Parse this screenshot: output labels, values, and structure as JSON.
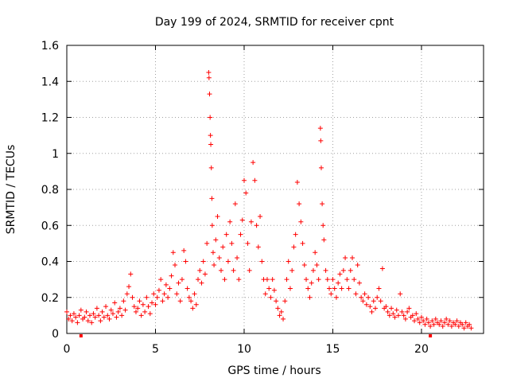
{
  "chart_data": {
    "type": "scatter",
    "title": "Day 199 of 2024, SRMTID for receiver cpnt",
    "xlabel": "GPS time / hours",
    "ylabel": "SRMTID / TECUs",
    "xlim": [
      0,
      23.5
    ],
    "ylim": [
      0,
      1.6
    ],
    "xticks": [
      0,
      5,
      10,
      15,
      20
    ],
    "xtick_labels": [
      "0",
      "5",
      "10",
      "15",
      "20"
    ],
    "yticks": [
      0,
      0.2,
      0.4,
      0.6,
      0.8,
      1.0,
      1.2,
      1.4,
      1.6
    ],
    "ytick_labels": [
      "0",
      "0.2",
      "0.4",
      "0.6",
      "0.8",
      "1",
      "1.2",
      "1.4",
      "1.6"
    ],
    "grid": true,
    "marker": "+",
    "color": "#ff0000",
    "series": [
      {
        "name": "SRMTID",
        "points": [
          [
            0.0,
            0.12
          ],
          [
            0.1,
            0.08
          ],
          [
            0.2,
            0.1
          ],
          [
            0.3,
            0.07
          ],
          [
            0.4,
            0.11
          ],
          [
            0.5,
            0.09
          ],
          [
            0.6,
            0.06
          ],
          [
            0.7,
            0.1
          ],
          [
            0.8,
            0.13
          ],
          [
            0.9,
            0.08
          ],
          [
            1.0,
            0.09
          ],
          [
            1.1,
            0.12
          ],
          [
            1.2,
            0.07
          ],
          [
            1.3,
            0.1
          ],
          [
            1.4,
            0.06
          ],
          [
            1.5,
            0.11
          ],
          [
            1.6,
            0.09
          ],
          [
            1.7,
            0.14
          ],
          [
            1.8,
            0.1
          ],
          [
            1.9,
            0.07
          ],
          [
            2.0,
            0.12
          ],
          [
            2.1,
            0.09
          ],
          [
            2.2,
            0.15
          ],
          [
            2.3,
            0.1
          ],
          [
            2.4,
            0.08
          ],
          [
            2.5,
            0.13
          ],
          [
            2.6,
            0.11
          ],
          [
            2.7,
            0.17
          ],
          [
            2.8,
            0.09
          ],
          [
            2.9,
            0.12
          ],
          [
            3.0,
            0.14
          ],
          [
            3.1,
            0.1
          ],
          [
            3.2,
            0.18
          ],
          [
            3.3,
            0.13
          ],
          [
            3.4,
            0.22
          ],
          [
            3.5,
            0.26
          ],
          [
            3.6,
            0.33
          ],
          [
            3.7,
            0.2
          ],
          [
            3.8,
            0.15
          ],
          [
            3.9,
            0.12
          ],
          [
            4.0,
            0.14
          ],
          [
            4.1,
            0.18
          ],
          [
            4.2,
            0.1
          ],
          [
            4.3,
            0.16
          ],
          [
            4.4,
            0.12
          ],
          [
            4.5,
            0.2
          ],
          [
            4.6,
            0.15
          ],
          [
            4.7,
            0.11
          ],
          [
            4.8,
            0.17
          ],
          [
            4.9,
            0.22
          ],
          [
            5.0,
            0.16
          ],
          [
            5.1,
            0.2
          ],
          [
            5.2,
            0.24
          ],
          [
            5.3,
            0.3
          ],
          [
            5.4,
            0.18
          ],
          [
            5.5,
            0.22
          ],
          [
            5.6,
            0.27
          ],
          [
            5.7,
            0.2
          ],
          [
            5.8,
            0.25
          ],
          [
            5.9,
            0.32
          ],
          [
            6.0,
            0.45
          ],
          [
            6.1,
            0.38
          ],
          [
            6.2,
            0.22
          ],
          [
            6.3,
            0.28
          ],
          [
            6.4,
            0.18
          ],
          [
            6.5,
            0.3
          ],
          [
            6.6,
            0.46
          ],
          [
            6.7,
            0.4
          ],
          [
            6.8,
            0.25
          ],
          [
            6.9,
            0.2
          ],
          [
            7.0,
            0.18
          ],
          [
            7.1,
            0.14
          ],
          [
            7.2,
            0.22
          ],
          [
            7.3,
            0.16
          ],
          [
            7.4,
            0.3
          ],
          [
            7.5,
            0.35
          ],
          [
            7.6,
            0.28
          ],
          [
            7.7,
            0.4
          ],
          [
            7.8,
            0.33
          ],
          [
            7.9,
            0.5
          ],
          [
            8.0,
            1.45
          ],
          [
            8.02,
            1.42
          ],
          [
            8.05,
            1.33
          ],
          [
            8.08,
            1.2
          ],
          [
            8.1,
            1.1
          ],
          [
            8.12,
            1.05
          ],
          [
            8.15,
            0.92
          ],
          [
            8.18,
            0.75
          ],
          [
            8.2,
            0.6
          ],
          [
            8.25,
            0.45
          ],
          [
            8.3,
            0.38
          ],
          [
            8.4,
            0.52
          ],
          [
            8.5,
            0.65
          ],
          [
            8.6,
            0.42
          ],
          [
            8.7,
            0.35
          ],
          [
            8.8,
            0.48
          ],
          [
            8.9,
            0.3
          ],
          [
            9.0,
            0.55
          ],
          [
            9.1,
            0.4
          ],
          [
            9.2,
            0.62
          ],
          [
            9.3,
            0.5
          ],
          [
            9.4,
            0.35
          ],
          [
            9.5,
            0.72
          ],
          [
            9.6,
            0.42
          ],
          [
            9.7,
            0.3
          ],
          [
            9.8,
            0.55
          ],
          [
            9.9,
            0.63
          ],
          [
            10.0,
            0.85
          ],
          [
            10.1,
            0.78
          ],
          [
            10.2,
            0.5
          ],
          [
            10.3,
            0.35
          ],
          [
            10.4,
            0.62
          ],
          [
            10.5,
            0.95
          ],
          [
            10.6,
            0.85
          ],
          [
            10.7,
            0.6
          ],
          [
            10.8,
            0.48
          ],
          [
            10.9,
            0.65
          ],
          [
            11.0,
            0.4
          ],
          [
            11.1,
            0.3
          ],
          [
            11.2,
            0.22
          ],
          [
            11.3,
            0.3
          ],
          [
            11.4,
            0.25
          ],
          [
            11.5,
            0.2
          ],
          [
            11.6,
            0.3
          ],
          [
            11.7,
            0.24
          ],
          [
            11.8,
            0.18
          ],
          [
            11.9,
            0.14
          ],
          [
            12.0,
            0.1
          ],
          [
            12.1,
            0.12
          ],
          [
            12.2,
            0.08
          ],
          [
            12.3,
            0.18
          ],
          [
            12.4,
            0.3
          ],
          [
            12.5,
            0.4
          ],
          [
            12.6,
            0.25
          ],
          [
            12.7,
            0.35
          ],
          [
            12.8,
            0.48
          ],
          [
            12.9,
            0.55
          ],
          [
            13.0,
            0.84
          ],
          [
            13.1,
            0.72
          ],
          [
            13.2,
            0.62
          ],
          [
            13.3,
            0.5
          ],
          [
            13.4,
            0.38
          ],
          [
            13.5,
            0.3
          ],
          [
            13.6,
            0.25
          ],
          [
            13.7,
            0.2
          ],
          [
            13.8,
            0.28
          ],
          [
            13.9,
            0.35
          ],
          [
            14.0,
            0.45
          ],
          [
            14.1,
            0.38
          ],
          [
            14.2,
            0.3
          ],
          [
            14.3,
            1.14
          ],
          [
            14.32,
            1.07
          ],
          [
            14.35,
            0.92
          ],
          [
            14.4,
            0.72
          ],
          [
            14.45,
            0.6
          ],
          [
            14.5,
            0.52
          ],
          [
            14.6,
            0.35
          ],
          [
            14.7,
            0.3
          ],
          [
            14.8,
            0.25
          ],
          [
            14.9,
            0.22
          ],
          [
            15.0,
            0.3
          ],
          [
            15.1,
            0.25
          ],
          [
            15.2,
            0.2
          ],
          [
            15.3,
            0.28
          ],
          [
            15.4,
            0.33
          ],
          [
            15.5,
            0.25
          ],
          [
            15.6,
            0.35
          ],
          [
            15.7,
            0.42
          ],
          [
            15.8,
            0.3
          ],
          [
            15.9,
            0.25
          ],
          [
            16.0,
            0.35
          ],
          [
            16.1,
            0.42
          ],
          [
            16.2,
            0.3
          ],
          [
            16.3,
            0.22
          ],
          [
            16.4,
            0.38
          ],
          [
            16.5,
            0.28
          ],
          [
            16.6,
            0.2
          ],
          [
            16.7,
            0.18
          ],
          [
            16.8,
            0.22
          ],
          [
            16.9,
            0.16
          ],
          [
            17.0,
            0.2
          ],
          [
            17.1,
            0.15
          ],
          [
            17.2,
            0.12
          ],
          [
            17.3,
            0.18
          ],
          [
            17.4,
            0.14
          ],
          [
            17.5,
            0.2
          ],
          [
            17.6,
            0.25
          ],
          [
            17.7,
            0.18
          ],
          [
            17.8,
            0.36
          ],
          [
            17.9,
            0.14
          ],
          [
            18.0,
            0.15
          ],
          [
            18.1,
            0.12
          ],
          [
            18.2,
            0.1
          ],
          [
            18.3,
            0.14
          ],
          [
            18.4,
            0.11
          ],
          [
            18.5,
            0.09
          ],
          [
            18.6,
            0.13
          ],
          [
            18.7,
            0.1
          ],
          [
            18.8,
            0.22
          ],
          [
            18.9,
            0.12
          ],
          [
            19.0,
            0.1
          ],
          [
            19.1,
            0.08
          ],
          [
            19.2,
            0.12
          ],
          [
            19.3,
            0.14
          ],
          [
            19.4,
            0.09
          ],
          [
            19.5,
            0.1
          ],
          [
            19.6,
            0.07
          ],
          [
            19.7,
            0.11
          ],
          [
            19.8,
            0.08
          ],
          [
            19.9,
            0.06
          ],
          [
            20.0,
            0.09
          ],
          [
            20.1,
            0.07
          ],
          [
            20.2,
            0.05
          ],
          [
            20.3,
            0.08
          ],
          [
            20.4,
            0.06
          ],
          [
            20.5,
            0.04
          ],
          [
            20.6,
            0.07
          ],
          [
            20.7,
            0.05
          ],
          [
            20.8,
            0.08
          ],
          [
            20.9,
            0.06
          ],
          [
            21.0,
            0.05
          ],
          [
            21.1,
            0.07
          ],
          [
            21.2,
            0.04
          ],
          [
            21.3,
            0.06
          ],
          [
            21.4,
            0.08
          ],
          [
            21.5,
            0.05
          ],
          [
            21.6,
            0.07
          ],
          [
            21.7,
            0.04
          ],
          [
            21.8,
            0.06
          ],
          [
            21.9,
            0.05
          ],
          [
            22.0,
            0.07
          ],
          [
            22.1,
            0.04
          ],
          [
            22.2,
            0.06
          ],
          [
            22.3,
            0.05
          ],
          [
            22.4,
            0.03
          ],
          [
            22.5,
            0.06
          ],
          [
            22.6,
            0.04
          ],
          [
            22.7,
            0.05
          ],
          [
            22.8,
            0.03
          ]
        ],
        "gaps": [
          0.8,
          20.5
        ]
      }
    ]
  }
}
